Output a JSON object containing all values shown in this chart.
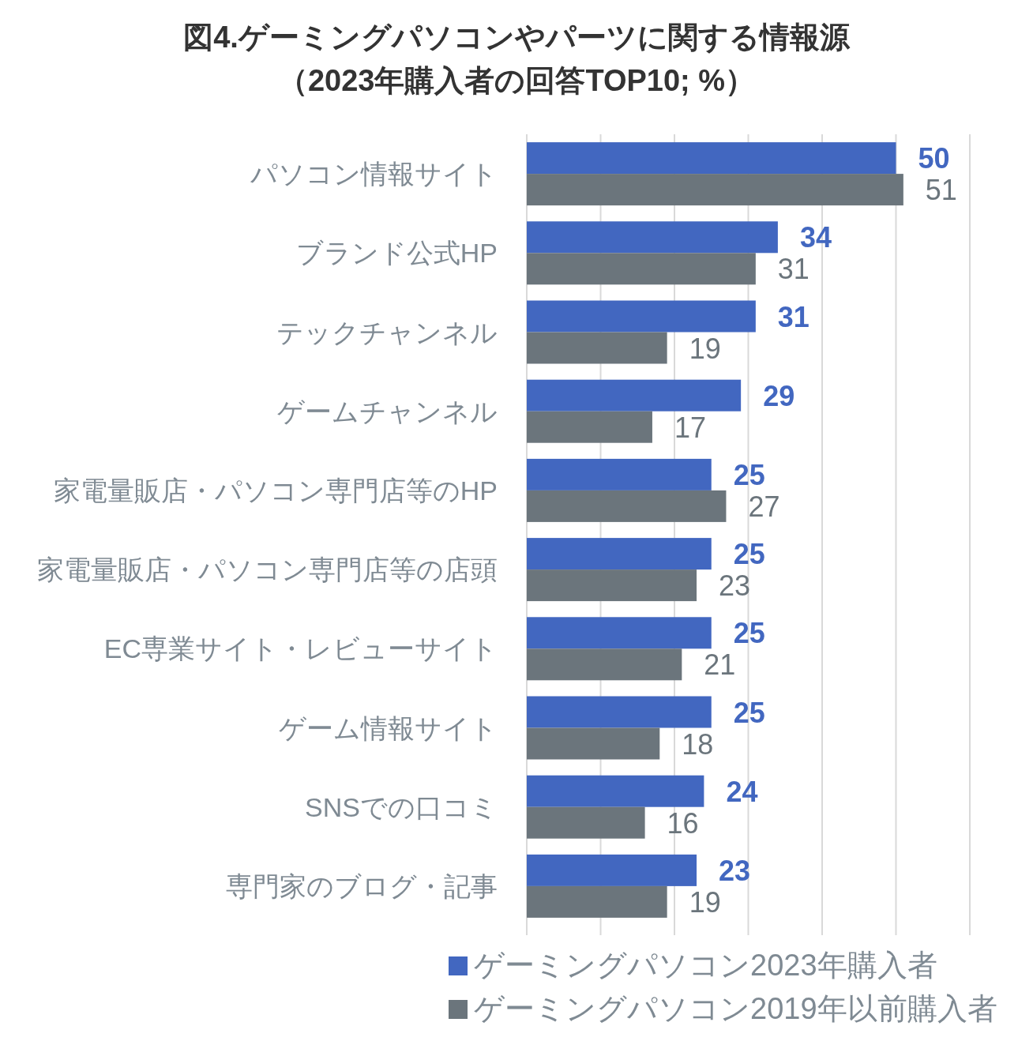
{
  "chart_data": {
    "type": "bar",
    "orientation": "horizontal",
    "title": "図4.ゲーミングパソコンやパーツに関する情報源",
    "subtitle": "（2023年購入者の回答TOP10; %）",
    "categories": [
      "パソコン情報サイト",
      "ブランド公式HP",
      "テックチャンネル",
      "ゲームチャンネル",
      "家電量販店・パソコン専門店等のHP",
      "家電量販店・パソコン専門店等の店頭",
      "EC専業サイト・レビューサイト",
      "ゲーム情報サイト",
      "SNSでの口コミ",
      "専門家のブログ・記事"
    ],
    "series": [
      {
        "name": "ゲーミングパソコン2023年購入者",
        "color": "#4267c0",
        "values": [
          50,
          34,
          31,
          29,
          25,
          25,
          25,
          25,
          24,
          23
        ]
      },
      {
        "name": "ゲーミングパソコン2019年以前購入者",
        "color": "#6b757c",
        "values": [
          51,
          31,
          19,
          17,
          27,
          23,
          21,
          18,
          16,
          19
        ]
      }
    ],
    "xlim": [
      0,
      60
    ],
    "xticks": [
      {
        "value": 0,
        "label": null
      },
      {
        "value": 10,
        "label": null
      },
      {
        "value": 20,
        "label": null
      },
      {
        "value": 30,
        "label": null
      },
      {
        "value": 40,
        "label": null
      },
      {
        "value": 50,
        "label": null
      },
      {
        "value": 60,
        "label": null
      }
    ],
    "tick_labels": "y",
    "grid": "x",
    "legend": "bottom",
    "data_labels": true
  }
}
